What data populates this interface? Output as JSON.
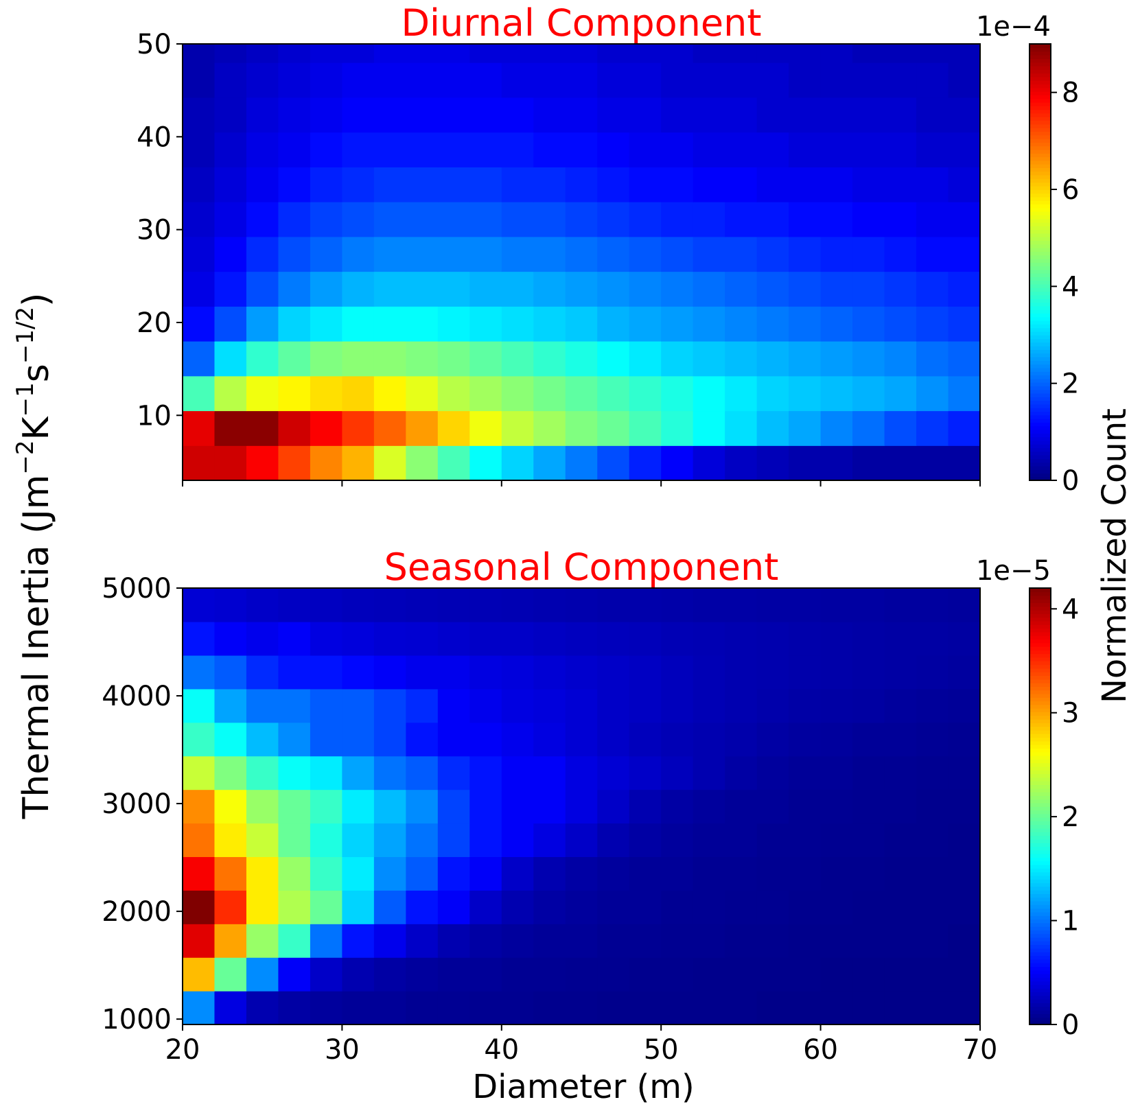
{
  "figure": {
    "ylabel_main": "Thermal Inertia (Jm",
    "ylabel_exp1": "−2",
    "ylabel_mid1": "K",
    "ylabel_exp2": "−1",
    "ylabel_mid2": "s",
    "ylabel_exp3": "−1/2",
    "ylabel_end": ")",
    "xlabel": "Diameter (m)",
    "colorbar_label": "Normalized Count"
  },
  "chart_data": [
    {
      "type": "heatmap",
      "title": "Diurnal Component",
      "title_color": "#ff0000",
      "colormap": "jet",
      "x_range": [
        20,
        70
      ],
      "y_range": [
        3,
        50
      ],
      "x_bin_width": 2,
      "y_bin_width": 3.75,
      "x_ticks": [
        20,
        30,
        40,
        50,
        60,
        70
      ],
      "x_tick_labels": [
        "",
        "",
        "",
        "",
        "",
        ""
      ],
      "y_ticks": [
        10,
        20,
        30,
        40,
        50
      ],
      "y_tick_labels": [
        "10",
        "20",
        "30",
        "40",
        "50"
      ],
      "colorbar": {
        "min": 0,
        "max": 9,
        "scale_label": "1e−4",
        "ticks": [
          0,
          2,
          4,
          6,
          8
        ],
        "tick_labels": [
          "0",
          "2",
          "4",
          "6",
          "8"
        ]
      },
      "rows_bottom_to_top": [
        [
          8.3,
          8.3,
          7.9,
          7.3,
          6.7,
          6.3,
          5.3,
          4.6,
          4.0,
          3.4,
          3.0,
          2.6,
          2.2,
          1.8,
          1.4,
          1.1,
          0.8,
          0.6,
          0.5,
          0.4,
          0.4,
          0.3,
          0.3,
          0.3,
          0.3
        ],
        [
          8.1,
          8.9,
          8.9,
          8.3,
          7.9,
          7.4,
          7.0,
          6.5,
          6.0,
          5.5,
          5.1,
          4.8,
          4.5,
          4.3,
          4.0,
          3.7,
          3.4,
          3.1,
          2.8,
          2.6,
          2.3,
          2.1,
          1.8,
          1.6,
          1.4
        ],
        [
          4.0,
          5.0,
          5.5,
          5.7,
          5.9,
          6.0,
          5.7,
          5.4,
          5.0,
          4.8,
          4.6,
          4.4,
          4.2,
          4.0,
          3.8,
          3.6,
          3.4,
          3.2,
          3.0,
          2.9,
          2.8,
          2.7,
          2.6,
          2.4,
          2.2
        ],
        [
          2.0,
          3.1,
          3.8,
          4.2,
          4.5,
          4.6,
          4.6,
          4.5,
          4.4,
          4.2,
          4.0,
          3.8,
          3.6,
          3.4,
          3.2,
          3.0,
          2.9,
          2.8,
          2.7,
          2.6,
          2.5,
          2.4,
          2.3,
          2.1,
          2.0
        ],
        [
          1.2,
          1.8,
          2.5,
          3.0,
          3.2,
          3.4,
          3.4,
          3.4,
          3.3,
          3.2,
          3.1,
          3.0,
          2.9,
          2.7,
          2.6,
          2.5,
          2.4,
          2.3,
          2.2,
          2.1,
          2.0,
          1.9,
          1.8,
          1.7,
          1.6
        ],
        [
          0.9,
          1.3,
          1.8,
          2.2,
          2.5,
          2.7,
          2.8,
          2.8,
          2.8,
          2.7,
          2.7,
          2.6,
          2.5,
          2.4,
          2.3,
          2.2,
          2.1,
          2.0,
          1.9,
          1.8,
          1.7,
          1.7,
          1.6,
          1.5,
          1.4
        ],
        [
          0.8,
          1.1,
          1.5,
          1.8,
          2.0,
          2.2,
          2.3,
          2.3,
          2.3,
          2.3,
          2.2,
          2.2,
          2.1,
          2.0,
          1.9,
          1.8,
          1.7,
          1.7,
          1.6,
          1.5,
          1.4,
          1.4,
          1.3,
          1.2,
          1.2
        ],
        [
          0.7,
          0.9,
          1.2,
          1.5,
          1.7,
          1.8,
          1.9,
          1.9,
          1.9,
          1.9,
          1.8,
          1.8,
          1.7,
          1.6,
          1.5,
          1.4,
          1.4,
          1.3,
          1.3,
          1.2,
          1.2,
          1.1,
          1.1,
          1.0,
          1.0
        ],
        [
          0.6,
          0.8,
          1.0,
          1.2,
          1.4,
          1.5,
          1.6,
          1.6,
          1.6,
          1.6,
          1.5,
          1.5,
          1.4,
          1.3,
          1.2,
          1.2,
          1.1,
          1.1,
          1.0,
          1.0,
          1.0,
          0.9,
          0.9,
          0.9,
          0.8
        ],
        [
          0.5,
          0.7,
          0.9,
          1.0,
          1.2,
          1.3,
          1.3,
          1.3,
          1.3,
          1.3,
          1.3,
          1.2,
          1.2,
          1.1,
          1.0,
          1.0,
          0.9,
          0.9,
          0.9,
          0.8,
          0.8,
          0.8,
          0.8,
          0.7,
          0.7
        ],
        [
          0.5,
          0.6,
          0.8,
          0.9,
          1.0,
          1.1,
          1.1,
          1.1,
          1.1,
          1.1,
          1.1,
          1.0,
          1.0,
          0.9,
          0.9,
          0.8,
          0.8,
          0.8,
          0.7,
          0.7,
          0.7,
          0.7,
          0.7,
          0.6,
          0.6
        ],
        [
          0.4,
          0.6,
          0.7,
          0.8,
          0.9,
          1.0,
          1.0,
          1.0,
          1.0,
          1.0,
          0.9,
          0.9,
          0.9,
          0.8,
          0.8,
          0.7,
          0.7,
          0.7,
          0.7,
          0.6,
          0.6,
          0.6,
          0.6,
          0.6,
          0.5
        ],
        [
          0.4,
          0.5,
          0.6,
          0.7,
          0.8,
          0.8,
          0.9,
          0.9,
          0.9,
          0.8,
          0.8,
          0.8,
          0.8,
          0.7,
          0.7,
          0.7,
          0.6,
          0.6,
          0.6,
          0.6,
          0.6,
          0.5,
          0.5,
          0.5,
          0.5
        ]
      ]
    },
    {
      "type": "heatmap",
      "title": "Seasonal Component",
      "title_color": "#ff0000",
      "colormap": "jet",
      "x_range": [
        20,
        70
      ],
      "y_range": [
        950,
        5000
      ],
      "x_bin_width": 2,
      "y_bin_width": 311.5,
      "x_ticks": [
        20,
        30,
        40,
        50,
        60,
        70
      ],
      "x_tick_labels": [
        "20",
        "30",
        "40",
        "50",
        "60",
        "70"
      ],
      "y_ticks": [
        1000,
        2000,
        3000,
        4000,
        5000
      ],
      "y_tick_labels": [
        "1000",
        "2000",
        "3000",
        "4000",
        "5000"
      ],
      "colorbar": {
        "min": 0,
        "max": 4.2,
        "scale_label": "1e−5",
        "ticks": [
          0,
          1,
          2,
          3,
          4
        ],
        "tick_labels": [
          "0",
          "1",
          "2",
          "3",
          "4"
        ]
      },
      "rows_bottom_to_top": [
        [
          1.1,
          0.4,
          0.2,
          0.15,
          0.12,
          0.1,
          0.1,
          0.08,
          0.08,
          0.07,
          0.07,
          0.06,
          0.06,
          0.05,
          0.05,
          0.05,
          0.05,
          0.05,
          0.04,
          0.04,
          0.04,
          0.04,
          0.04,
          0.04,
          0.04
        ],
        [
          2.9,
          2.0,
          1.1,
          0.5,
          0.3,
          0.2,
          0.15,
          0.12,
          0.1,
          0.1,
          0.08,
          0.08,
          0.07,
          0.07,
          0.06,
          0.06,
          0.05,
          0.05,
          0.05,
          0.05,
          0.04,
          0.04,
          0.04,
          0.04,
          0.04
        ],
        [
          3.8,
          3.0,
          2.2,
          1.8,
          1.0,
          0.6,
          0.45,
          0.3,
          0.2,
          0.15,
          0.12,
          0.1,
          0.1,
          0.08,
          0.08,
          0.07,
          0.07,
          0.06,
          0.06,
          0.05,
          0.05,
          0.05,
          0.05,
          0.05,
          0.04
        ],
        [
          4.2,
          3.5,
          2.7,
          2.3,
          2.0,
          1.4,
          0.9,
          0.6,
          0.5,
          0.3,
          0.2,
          0.15,
          0.12,
          0.1,
          0.1,
          0.08,
          0.08,
          0.07,
          0.07,
          0.06,
          0.06,
          0.05,
          0.05,
          0.05,
          0.05
        ],
        [
          3.7,
          3.2,
          2.7,
          2.2,
          1.8,
          1.5,
          1.1,
          0.9,
          0.6,
          0.5,
          0.3,
          0.2,
          0.15,
          0.12,
          0.1,
          0.1,
          0.08,
          0.08,
          0.07,
          0.07,
          0.06,
          0.06,
          0.05,
          0.05,
          0.05
        ],
        [
          3.2,
          2.7,
          2.4,
          2.0,
          1.7,
          1.4,
          1.2,
          1.0,
          0.8,
          0.6,
          0.5,
          0.4,
          0.3,
          0.2,
          0.15,
          0.12,
          0.1,
          0.1,
          0.08,
          0.08,
          0.07,
          0.07,
          0.06,
          0.06,
          0.05
        ],
        [
          3.1,
          2.6,
          2.2,
          2.0,
          1.8,
          1.5,
          1.3,
          1.1,
          0.8,
          0.6,
          0.5,
          0.5,
          0.4,
          0.3,
          0.2,
          0.15,
          0.12,
          0.1,
          0.1,
          0.08,
          0.08,
          0.07,
          0.07,
          0.06,
          0.06
        ],
        [
          2.4,
          2.1,
          1.8,
          1.6,
          1.5,
          1.2,
          1.0,
          0.9,
          0.7,
          0.6,
          0.5,
          0.5,
          0.4,
          0.35,
          0.3,
          0.25,
          0.2,
          0.15,
          0.12,
          0.1,
          0.1,
          0.08,
          0.08,
          0.07,
          0.07
        ],
        [
          1.8,
          1.6,
          1.3,
          1.1,
          0.9,
          0.9,
          0.8,
          0.6,
          0.5,
          0.5,
          0.45,
          0.4,
          0.35,
          0.3,
          0.25,
          0.22,
          0.2,
          0.18,
          0.15,
          0.13,
          0.12,
          0.1,
          0.1,
          0.09,
          0.08
        ],
        [
          1.6,
          1.2,
          1.0,
          1.0,
          0.9,
          0.9,
          0.8,
          0.7,
          0.5,
          0.45,
          0.4,
          0.38,
          0.35,
          0.3,
          0.28,
          0.25,
          0.22,
          0.2,
          0.18,
          0.16,
          0.15,
          0.14,
          0.12,
          0.11,
          0.1
        ],
        [
          1.0,
          0.9,
          0.7,
          0.6,
          0.6,
          0.55,
          0.5,
          0.45,
          0.45,
          0.4,
          0.38,
          0.35,
          0.32,
          0.3,
          0.28,
          0.25,
          0.22,
          0.2,
          0.19,
          0.18,
          0.17,
          0.16,
          0.15,
          0.14,
          0.13
        ],
        [
          0.6,
          0.5,
          0.45,
          0.5,
          0.4,
          0.38,
          0.35,
          0.34,
          0.32,
          0.3,
          0.3,
          0.28,
          0.26,
          0.25,
          0.24,
          0.22,
          0.21,
          0.2,
          0.19,
          0.18,
          0.17,
          0.16,
          0.15,
          0.15,
          0.14
        ],
        [
          0.35,
          0.33,
          0.3,
          0.28,
          0.27,
          0.25,
          0.24,
          0.23,
          0.22,
          0.22,
          0.21,
          0.2,
          0.19,
          0.18,
          0.18,
          0.17,
          0.16,
          0.16,
          0.15,
          0.15,
          0.14,
          0.14,
          0.13,
          0.13,
          0.12
        ]
      ]
    }
  ]
}
